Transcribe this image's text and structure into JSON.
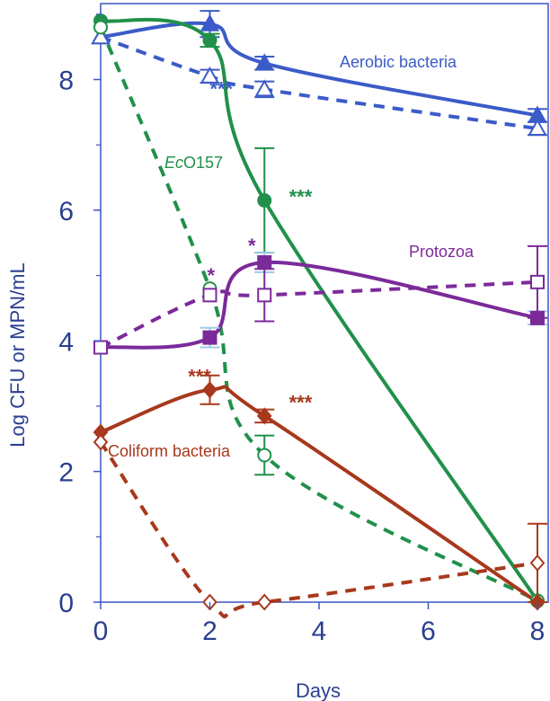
{
  "chart_data": {
    "type": "line",
    "xlabel": "Days",
    "ylabel": "Log CFU or MPN/mL",
    "xlim": [
      0,
      8
    ],
    "ylim": [
      0,
      9
    ],
    "x_ticks": [
      "0",
      "2",
      "4",
      "6",
      "8"
    ],
    "y_ticks": [
      "0",
      "2",
      "4",
      "6",
      "8"
    ],
    "colors": {
      "axis": "#3b55c4",
      "text": "#2b3f8f",
      "aerobic": "#3b5bc8",
      "ec": "#21904a",
      "protozoa": "#7b2a9a",
      "coliform": "#a8381c",
      "errorbar_light": "#9ecae8"
    },
    "series": [
      {
        "key": "aerobic_solid",
        "label": "Aerobic bacteria",
        "color": "#3b5bc8",
        "dash": false,
        "marker": "triangle",
        "filled": true,
        "x": [
          0,
          2,
          3,
          8
        ],
        "y": [
          8.65,
          8.85,
          8.25,
          7.45
        ],
        "err": [
          0,
          0.2,
          0.1,
          0.1
        ]
      },
      {
        "key": "aerobic_dashed",
        "color": "#3b5bc8",
        "dash": true,
        "marker": "triangle",
        "filled": false,
        "x": [
          0,
          2,
          3,
          8
        ],
        "y": [
          8.65,
          8.05,
          7.85,
          7.25
        ],
        "err": [
          0,
          0.1,
          0.12,
          0.1
        ]
      },
      {
        "key": "ec_solid",
        "label": "EcO157",
        "color": "#21904a",
        "dash": false,
        "marker": "circle",
        "filled": true,
        "x": [
          0,
          2,
          3,
          8
        ],
        "y": [
          8.9,
          8.6,
          6.15,
          0.02
        ],
        "err": [
          0,
          0.1,
          0.8,
          0
        ]
      },
      {
        "key": "ec_dashed",
        "color": "#21904a",
        "dash": true,
        "marker": "circle",
        "filled": false,
        "x": [
          0,
          2,
          3,
          8
        ],
        "y": [
          8.8,
          4.8,
          2.25,
          0.02
        ],
        "err": [
          0,
          0,
          0.3,
          0
        ]
      },
      {
        "key": "protozoa_solid",
        "label": "Protozoa",
        "color": "#7b2a9a",
        "dash": false,
        "marker": "square",
        "filled": true,
        "x": [
          0,
          2,
          3,
          8
        ],
        "y": [
          3.9,
          4.05,
          5.2,
          4.35
        ],
        "err": [
          0,
          0.15,
          0.15,
          0.1
        ]
      },
      {
        "key": "protozoa_dashed",
        "color": "#7b2a9a",
        "dash": true,
        "marker": "square",
        "filled": false,
        "x": [
          0,
          2,
          3,
          8
        ],
        "y": [
          3.9,
          4.7,
          4.7,
          4.9
        ],
        "err": [
          0,
          0,
          0.4,
          0.55
        ]
      },
      {
        "key": "coliform_solid",
        "label": "Coliform bacteria",
        "color": "#a8381c",
        "dash": false,
        "marker": "diamond",
        "filled": true,
        "x": [
          0,
          2,
          3,
          8
        ],
        "y": [
          2.6,
          3.25,
          2.85,
          0.0
        ],
        "err": [
          0,
          0.22,
          0.1,
          0
        ]
      },
      {
        "key": "coliform_dashed",
        "color": "#a8381c",
        "dash": true,
        "marker": "diamond",
        "filled": false,
        "x": [
          0,
          2,
          3,
          8
        ],
        "y": [
          2.45,
          0.0,
          0.0,
          0.6
        ],
        "err": [
          0,
          0,
          0,
          0.6
        ]
      }
    ],
    "annotations": [
      {
        "text": "***",
        "x": 2.0,
        "y": 7.75,
        "color": "#3b5bc8"
      },
      {
        "text": "***",
        "x": 3.45,
        "y": 6.1,
        "color": "#21904a"
      },
      {
        "text": "*",
        "x": 2.7,
        "y": 5.35,
        "color": "#7b2a9a"
      },
      {
        "text": "*",
        "x": 1.95,
        "y": 4.9,
        "color": "#7b2a9a"
      },
      {
        "text": "***",
        "x": 1.6,
        "y": 3.35,
        "color": "#a8381c"
      },
      {
        "text": "***",
        "x": 3.45,
        "y": 2.95,
        "color": "#a8381c"
      }
    ]
  }
}
